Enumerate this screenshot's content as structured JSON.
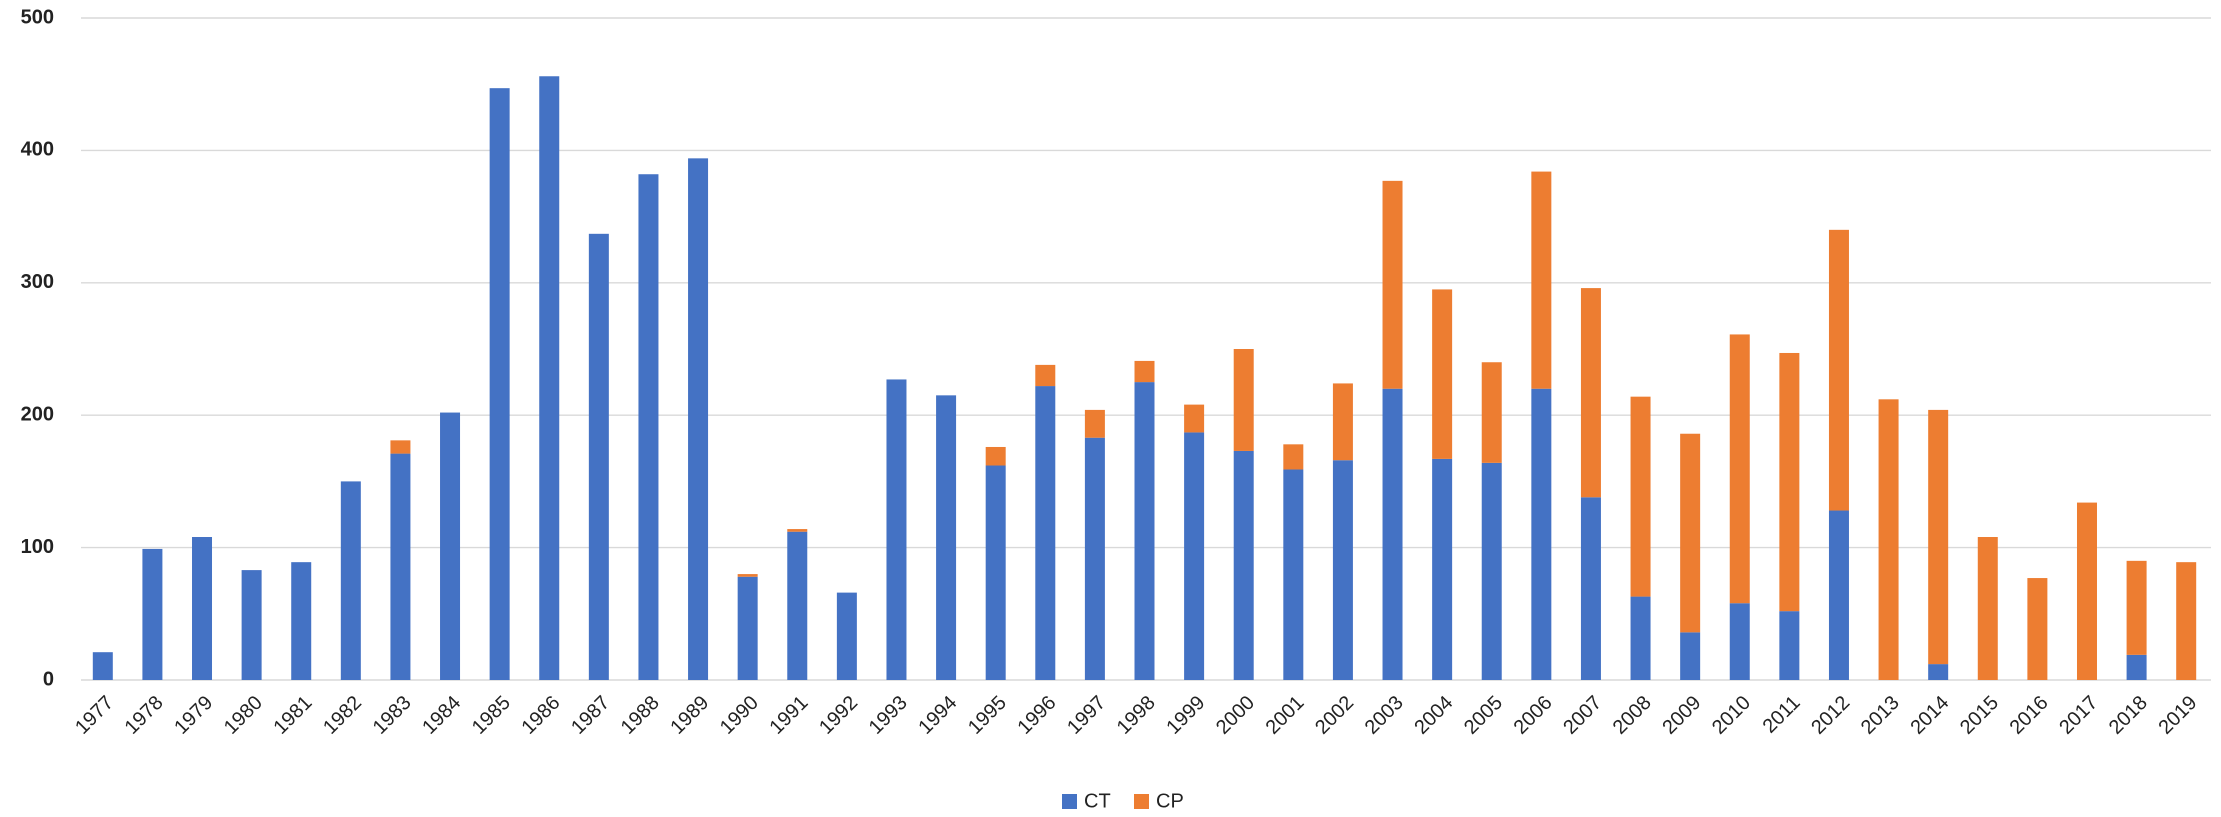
{
  "chart_data": {
    "type": "stacked-bar",
    "categories": [
      "1977",
      "1978",
      "1979",
      "1980",
      "1981",
      "1982",
      "1983",
      "1984",
      "1985",
      "1986",
      "1987",
      "1988",
      "1989",
      "1990",
      "1991",
      "1992",
      "1993",
      "1994",
      "1995",
      "1996",
      "1997",
      "1998",
      "1999",
      "2000",
      "2001",
      "2002",
      "2003",
      "2004",
      "2005",
      "2006",
      "2007",
      "2008",
      "2009",
      "2010",
      "2011",
      "2012",
      "2013",
      "2014",
      "2015",
      "2016",
      "2017",
      "2018",
      "2019"
    ],
    "series": [
      {
        "name": "CT",
        "color": "#4472c4",
        "values": [
          21,
          99,
          108,
          83,
          89,
          150,
          171,
          202,
          447,
          456,
          337,
          382,
          394,
          78,
          112,
          66,
          227,
          215,
          162,
          222,
          183,
          225,
          187,
          173,
          159,
          166,
          220,
          167,
          164,
          220,
          138,
          63,
          36,
          58,
          52,
          128,
          0,
          12,
          0,
          0,
          0,
          19,
          0
        ]
      },
      {
        "name": "CP",
        "color": "#ed7d31",
        "values": [
          0,
          0,
          0,
          0,
          0,
          0,
          10,
          0,
          0,
          0,
          0,
          0,
          0,
          2,
          2,
          0,
          0,
          0,
          14,
          16,
          21,
          16,
          21,
          77,
          19,
          58,
          157,
          128,
          76,
          164,
          158,
          151,
          150,
          203,
          195,
          212,
          212,
          192,
          108,
          77,
          134,
          71,
          89
        ]
      }
    ],
    "ylim": [
      0,
      500
    ],
    "yticks": [
      0,
      100,
      200,
      300,
      400,
      500
    ],
    "grid": true,
    "legend": "bottom"
  }
}
